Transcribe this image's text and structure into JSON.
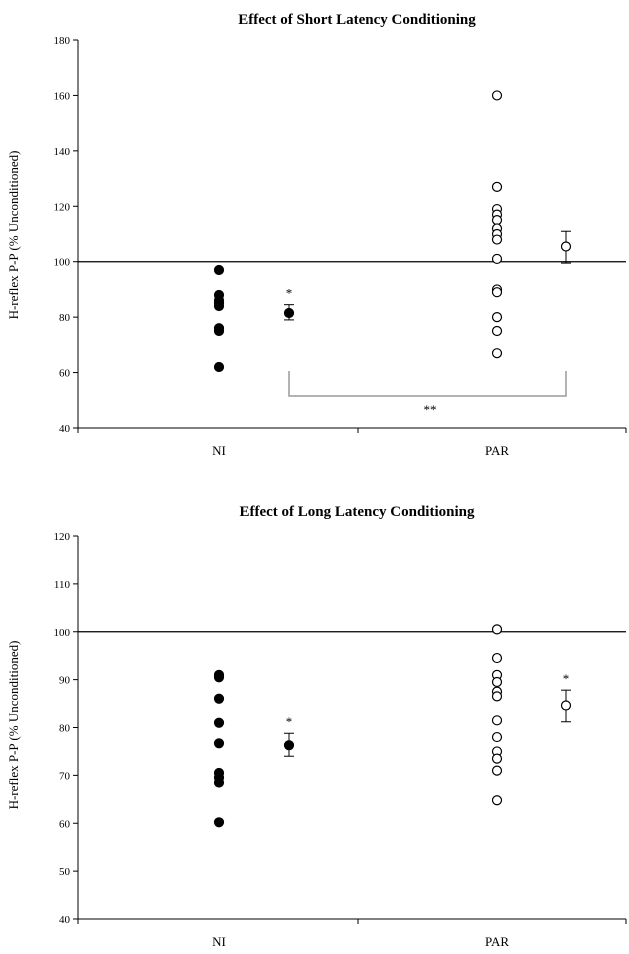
{
  "chart_data": [
    {
      "type": "scatter",
      "title": "Effect of Short Latency Conditioning",
      "xlabel": "",
      "ylabel": "H-reflex P-P  (% Unconditioned)",
      "ylim": [
        40,
        180
      ],
      "yticks": [
        40,
        60,
        80,
        100,
        120,
        140,
        160,
        180
      ],
      "categories": [
        "NI",
        "PAR"
      ],
      "reference_line": 100,
      "series": [
        {
          "category": "NI",
          "marker": "filled-circle",
          "values": [
            97,
            88,
            86,
            85,
            84,
            76,
            75,
            62
          ]
        },
        {
          "category": "PAR",
          "marker": "open-circle",
          "values": [
            160,
            127,
            119,
            117,
            115,
            112,
            110,
            108,
            101,
            90,
            89,
            80,
            75,
            67
          ]
        }
      ],
      "means": [
        {
          "category": "NI",
          "marker": "filled-circle",
          "mean": 81.5,
          "error_low": 79,
          "error_high": 84.5,
          "annotation": "*"
        },
        {
          "category": "PAR",
          "marker": "open-circle",
          "mean": 105.5,
          "error_low": 99.5,
          "error_high": 111,
          "annotation": ""
        }
      ],
      "bracket_annotation": "**"
    },
    {
      "type": "scatter",
      "title": "Effect of Long Latency Conditioning",
      "xlabel": "",
      "ylabel": "H-reflex P-P  (% Unconditioned)",
      "ylim": [
        40,
        120
      ],
      "yticks": [
        40,
        50,
        60,
        70,
        80,
        90,
        100,
        110,
        120
      ],
      "categories": [
        "NI",
        "PAR"
      ],
      "reference_line": 100,
      "series": [
        {
          "category": "NI",
          "marker": "filled-circle",
          "values": [
            91,
            90.5,
            86,
            81,
            76.7,
            70.5,
            69.5,
            68.5,
            60.2
          ]
        },
        {
          "category": "PAR",
          "marker": "open-circle",
          "values": [
            100.5,
            94.5,
            91,
            89.5,
            87.5,
            86.5,
            81.5,
            78,
            75,
            73.5,
            71,
            64.8
          ]
        }
      ],
      "means": [
        {
          "category": "NI",
          "marker": "filled-circle",
          "mean": 76.3,
          "error_low": 74,
          "error_high": 78.8,
          "annotation": "*"
        },
        {
          "category": "PAR",
          "marker": "open-circle",
          "mean": 84.6,
          "error_low": 81.2,
          "error_high": 87.8,
          "annotation": "*"
        }
      ]
    }
  ]
}
